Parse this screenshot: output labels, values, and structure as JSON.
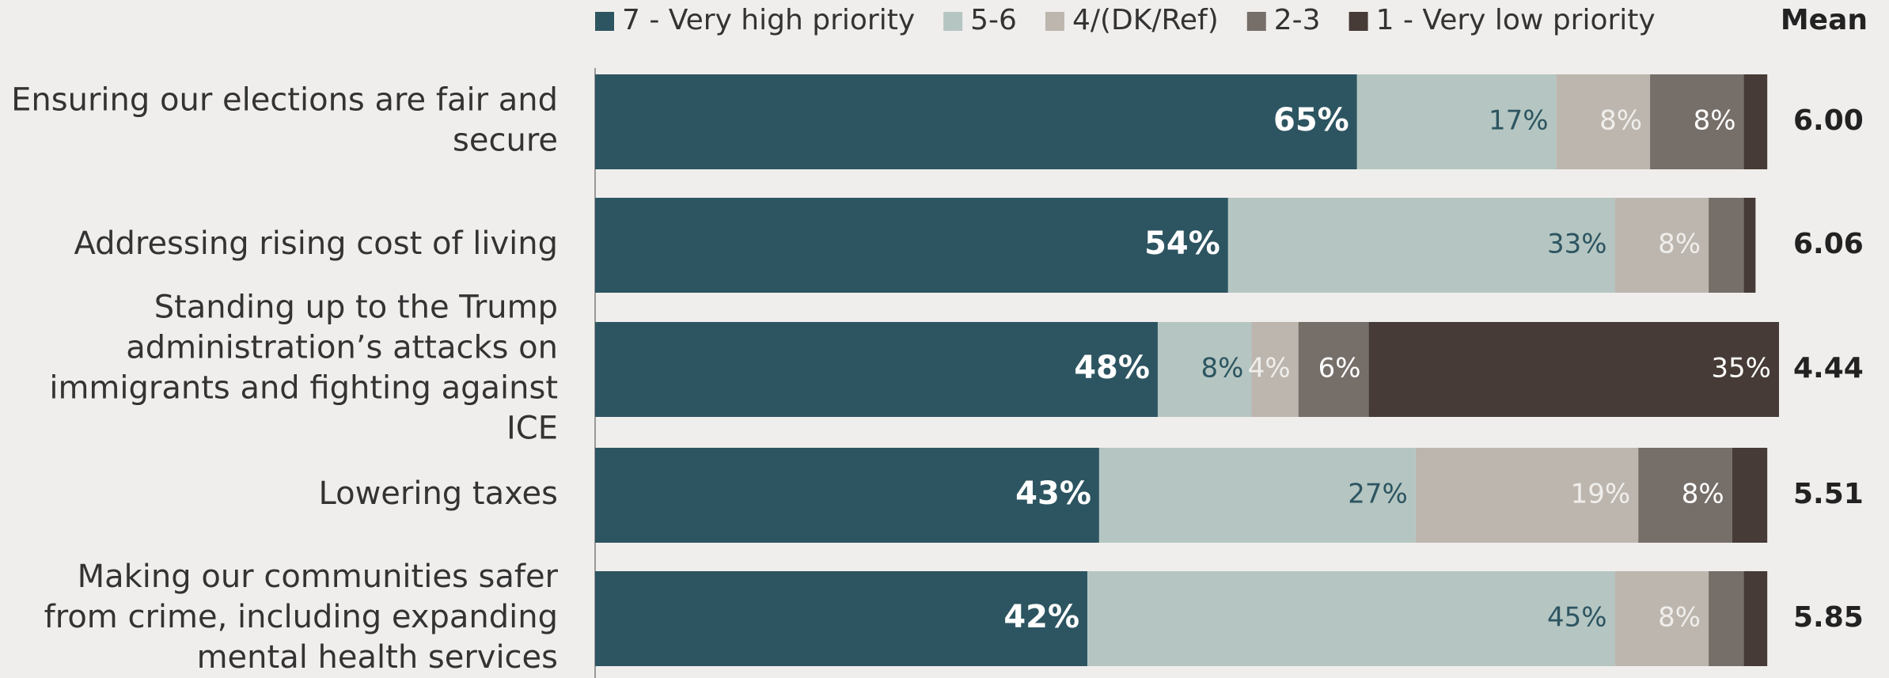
{
  "chart_data": {
    "type": "stacked-bar-horizontal",
    "categories": [
      "Ensuring our elections are fair and secure",
      "Addressing rising cost of living",
      "Standing up to the Trump administration’s attacks on immigrants and fighting against ICE",
      "Lowering taxes",
      "Making our communities safer from crime, including expanding mental health services"
    ],
    "series": [
      {
        "name": "7 - Very high priority",
        "color": "#2d5561",
        "values": [
          65,
          54,
          48,
          43,
          42
        ],
        "value_labels": [
          "65%",
          "54%",
          "48%",
          "43%",
          "42%"
        ]
      },
      {
        "name": "5-6",
        "color": "#b5c6c2",
        "values": [
          17,
          33,
          8,
          27,
          45
        ],
        "value_labels": [
          "17%",
          "33%",
          "8%",
          "27%",
          "45%"
        ]
      },
      {
        "name": "4/(DK/Ref)",
        "color": "#bcb6ae",
        "values": [
          8,
          8,
          4,
          19,
          8
        ],
        "value_labels": [
          "8%",
          "8%",
          "4%",
          "19%",
          "8%"
        ]
      },
      {
        "name": "2-3",
        "color": "#766e69",
        "values": [
          8,
          3,
          6,
          8,
          3
        ],
        "value_labels": [
          "8%",
          null,
          "6%",
          "8%",
          null
        ]
      },
      {
        "name": "1 - Very low priority",
        "color": "#463b36",
        "values": [
          2,
          1,
          35,
          3,
          2
        ],
        "value_labels": [
          null,
          null,
          "35%",
          null,
          null
        ]
      }
    ],
    "mean": {
      "title": "Mean",
      "values": [
        "6.00",
        "6.06",
        "4.44",
        "5.51",
        "5.85"
      ]
    },
    "xlim": [
      0,
      101
    ]
  }
}
